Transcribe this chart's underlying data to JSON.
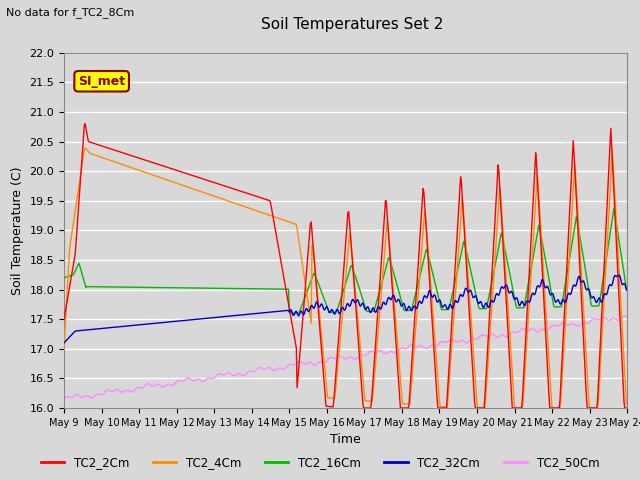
{
  "title": "Soil Temperatures Set 2",
  "subtitle": "No data for f_TC2_8Cm",
  "xlabel": "Time",
  "ylabel": "Soil Temperature (C)",
  "ylim": [
    16.0,
    22.0
  ],
  "yticks": [
    16.0,
    16.5,
    17.0,
    17.5,
    18.0,
    18.5,
    19.0,
    19.5,
    20.0,
    20.5,
    21.0,
    21.5,
    22.0
  ],
  "bg_color": "#d8d8d8",
  "plot_bg_color": "#d8d8d8",
  "grid_color": "#ffffff",
  "colors": {
    "TC2_2Cm": "#ff0000",
    "TC2_4Cm": "#ff8c00",
    "TC2_16Cm": "#00bb00",
    "TC2_32Cm": "#0000cc",
    "TC2_50Cm": "#ff88ff"
  },
  "legend_label": "SI_met",
  "legend_label_bg": "#ffff00",
  "legend_label_border": "#8b0000",
  "x_start_day": 9,
  "x_end_day": 24,
  "xtick_days": [
    9,
    10,
    11,
    12,
    13,
    14,
    15,
    16,
    17,
    18,
    19,
    20,
    21,
    22,
    23,
    24
  ]
}
